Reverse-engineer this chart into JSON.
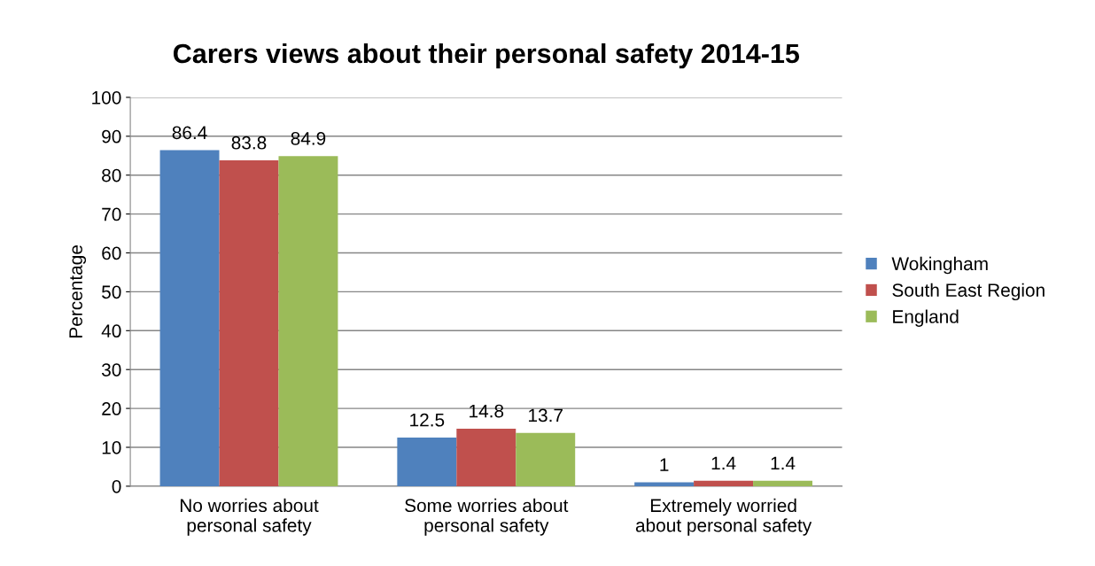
{
  "chart_data": {
    "type": "bar",
    "title": "Carers views about their personal safety 2014-15",
    "ylabel": "Percentage",
    "categories": [
      "No worries about\npersonal safety",
      "Some worries about\npersonal safety",
      "Extremely worried\nabout personal safety"
    ],
    "series": [
      {
        "name": "Wokingham",
        "color": "#4f81bd",
        "values": [
          86.4,
          12.5,
          1
        ]
      },
      {
        "name": "South East Region",
        "color": "#c0504d",
        "values": [
          83.8,
          14.8,
          1.4
        ]
      },
      {
        "name": "England",
        "color": "#9bbb59",
        "values": [
          84.9,
          13.7,
          1.4
        ]
      }
    ],
    "ylim": [
      0,
      100
    ],
    "yticks": [
      0,
      10,
      20,
      30,
      40,
      50,
      60,
      70,
      80,
      90,
      100
    ],
    "grid": "y",
    "legend": "right",
    "data_labels": true
  }
}
